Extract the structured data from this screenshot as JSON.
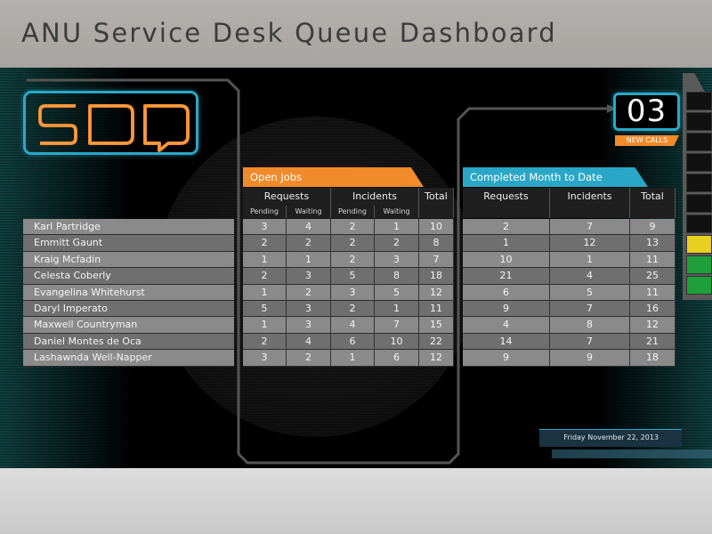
{
  "window": {
    "title": "ANU Service Desk Queue Dashboard"
  },
  "logo": {
    "text": "SDQ"
  },
  "new_calls": {
    "count": "03",
    "label": "NEW CALLS"
  },
  "open_jobs": {
    "title": "Open Jobs",
    "requests_label": "Requests",
    "incidents_label": "Incidents",
    "total_label": "Total",
    "pending_label": "Pending",
    "waiting_label": "Waiting"
  },
  "completed": {
    "title": "Completed Month to Date",
    "requests_label": "Requests",
    "incidents_label": "Incidents",
    "total_label": "Total"
  },
  "rows": [
    {
      "name": "Karl Partridge",
      "req_pending": "3",
      "req_waiting": "4",
      "inc_pending": "2",
      "inc_waiting": "1",
      "open_total": "10",
      "comp_requests": "2",
      "comp_incidents": "7",
      "comp_total": "9"
    },
    {
      "name": "Emmitt Gaunt",
      "req_pending": "2",
      "req_waiting": "2",
      "inc_pending": "2",
      "inc_waiting": "2",
      "open_total": "8",
      "comp_requests": "1",
      "comp_incidents": "12",
      "comp_total": "13"
    },
    {
      "name": "Kraig Mcfadin",
      "req_pending": "1",
      "req_waiting": "1",
      "inc_pending": "2",
      "inc_waiting": "3",
      "open_total": "7",
      "comp_requests": "10",
      "comp_incidents": "1",
      "comp_total": "11"
    },
    {
      "name": "Celesta Coberly",
      "req_pending": "2",
      "req_waiting": "3",
      "inc_pending": "5",
      "inc_waiting": "8",
      "open_total": "18",
      "comp_requests": "21",
      "comp_incidents": "4",
      "comp_total": "25"
    },
    {
      "name": "Evangelina Whitehurst",
      "req_pending": "1",
      "req_waiting": "2",
      "inc_pending": "3",
      "inc_waiting": "5",
      "open_total": "12",
      "comp_requests": "6",
      "comp_incidents": "5",
      "comp_total": "11"
    },
    {
      "name": "Daryl Imperato",
      "req_pending": "5",
      "req_waiting": "3",
      "inc_pending": "2",
      "inc_waiting": "1",
      "open_total": "11",
      "comp_requests": "9",
      "comp_incidents": "7",
      "comp_total": "16"
    },
    {
      "name": "Maxwell Countryman",
      "req_pending": "1",
      "req_waiting": "3",
      "inc_pending": "4",
      "inc_waiting": "7",
      "open_total": "15",
      "comp_requests": "4",
      "comp_incidents": "8",
      "comp_total": "12"
    },
    {
      "name": "Daniel Montes de Oca",
      "req_pending": "2",
      "req_waiting": "4",
      "inc_pending": "6",
      "inc_waiting": "10",
      "open_total": "22",
      "comp_requests": "14",
      "comp_incidents": "7",
      "comp_total": "21"
    },
    {
      "name": "Lashawnda Well-Napper",
      "req_pending": "3",
      "req_waiting": "2",
      "inc_pending": "1",
      "inc_waiting": "6",
      "open_total": "12",
      "comp_requests": "9",
      "comp_incidents": "9",
      "comp_total": "18"
    }
  ],
  "meter": {
    "cells": [
      "#111111",
      "#111111",
      "#111111",
      "#111111",
      "#111111",
      "#111111",
      "#111111",
      "#e8cf20",
      "#1f9e3c",
      "#1f9e3c"
    ]
  },
  "date": "Friday November 22, 2013",
  "colors": {
    "accent_orange": "#f08a2a",
    "accent_blue": "#2aa6c6",
    "meter_yellow": "#e8cf20",
    "meter_green": "#1f9e3c"
  }
}
